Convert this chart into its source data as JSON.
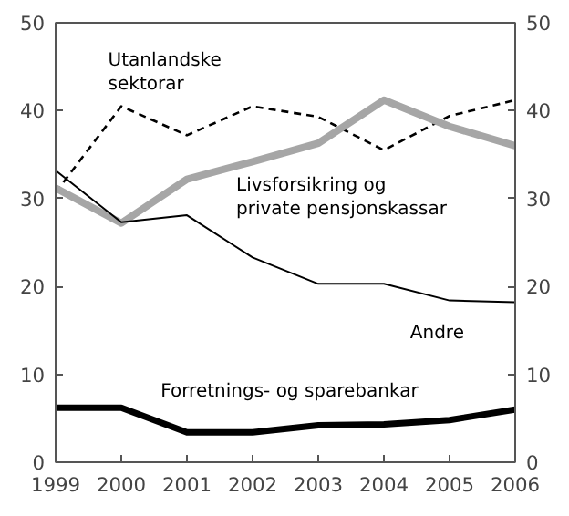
{
  "chart_data": {
    "type": "line",
    "x": [
      1999,
      2000,
      2001,
      2002,
      2003,
      2004,
      2005,
      2006
    ],
    "xlim": [
      1999,
      2006
    ],
    "xticks": [
      1999,
      2000,
      2001,
      2002,
      2003,
      2004,
      2005,
      2006
    ],
    "ylim": [
      0,
      50
    ],
    "yticks": [
      0,
      10,
      20,
      30,
      40,
      50
    ],
    "y2lim": [
      0,
      50
    ],
    "y2ticks": [
      0,
      10,
      20,
      30,
      40,
      50
    ],
    "grid": false,
    "series": [
      {
        "name": "Utanlandske sektorar",
        "color": "#000000",
        "line_style": "dashed",
        "values": [
          30.7,
          40.5,
          37.2,
          40.5,
          39.3,
          35.5,
          39.4,
          41.2
        ]
      },
      {
        "name": "Livsforsikring og private pensjonskassar",
        "color": "#a6a6a6",
        "values": [
          31.2,
          27.2,
          32.2,
          34.2,
          36.3,
          41.2,
          38.2,
          36.0
        ]
      },
      {
        "name": "Andre",
        "color": "#000000",
        "values": [
          33.2,
          27.3,
          28.1,
          23.3,
          20.3,
          20.3,
          18.4,
          18.2
        ]
      },
      {
        "name": "Forretnings- og sparebankar",
        "color": "#000000",
        "values": [
          6.2,
          6.2,
          3.4,
          3.4,
          4.2,
          4.3,
          4.8,
          6.0
        ]
      }
    ]
  }
}
